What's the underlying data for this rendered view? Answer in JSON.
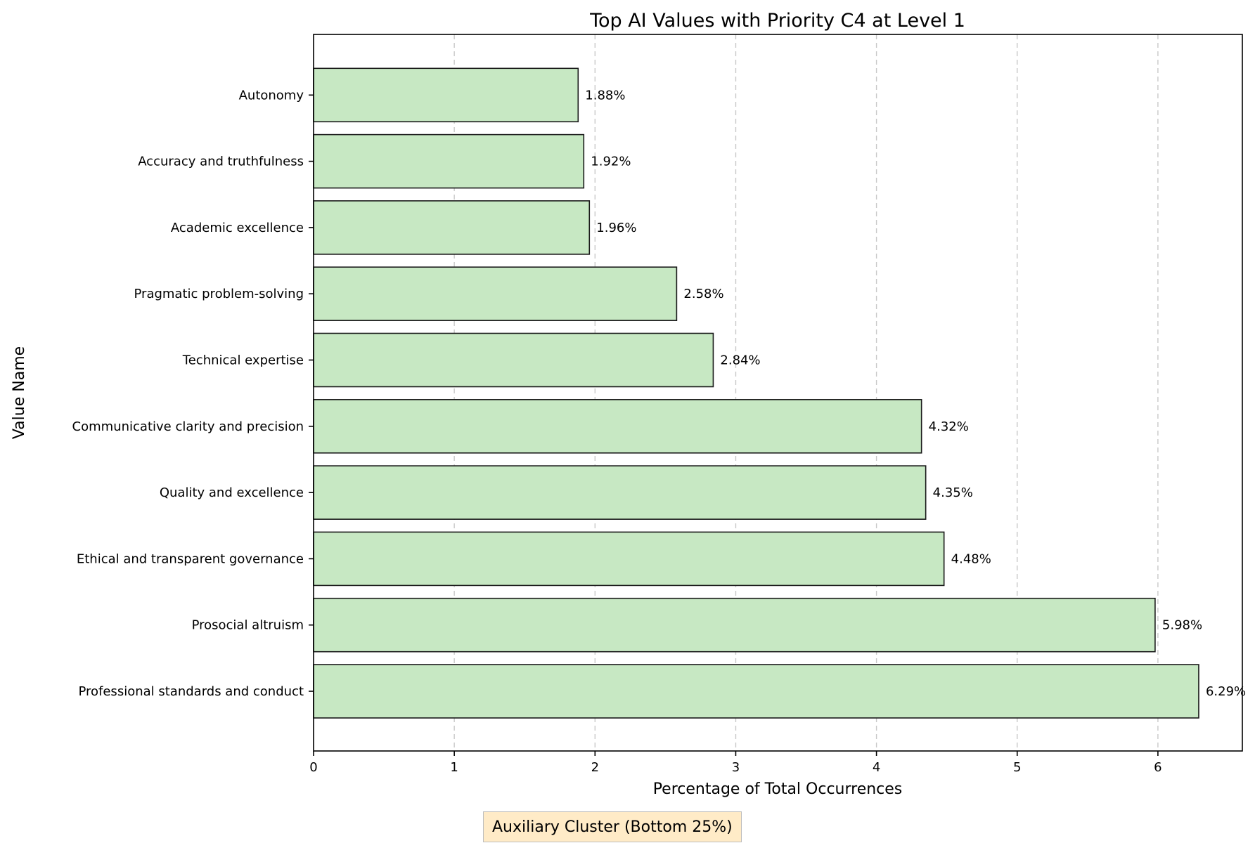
{
  "chart_data": {
    "type": "bar",
    "orientation": "horizontal",
    "title": "Top AI Values with Priority C4 at Level 1",
    "xlabel": "Percentage of Total Occurrences",
    "ylabel": "Value Name",
    "xlim": [
      0,
      6.6
    ],
    "xticks": [
      0,
      1,
      2,
      3,
      4,
      5,
      6
    ],
    "grid": "x-dashed",
    "categories": [
      "Professional standards and conduct",
      "Prosocial altruism",
      "Ethical and transparent governance",
      "Quality and excellence",
      "Communicative clarity and precision",
      "Technical expertise",
      "Pragmatic problem-solving",
      "Academic excellence",
      "Accuracy and truthfulness",
      "Autonomy"
    ],
    "values": [
      6.29,
      5.98,
      4.48,
      4.35,
      4.32,
      2.84,
      2.58,
      1.96,
      1.92,
      1.88
    ],
    "value_labels": [
      "6.29%",
      "5.98%",
      "4.48%",
      "4.35%",
      "4.32%",
      "2.84%",
      "2.58%",
      "1.96%",
      "1.92%",
      "1.88%"
    ],
    "bar_color": "#c7e8c3",
    "annotation": "Auxiliary Cluster (Bottom 25%)"
  }
}
